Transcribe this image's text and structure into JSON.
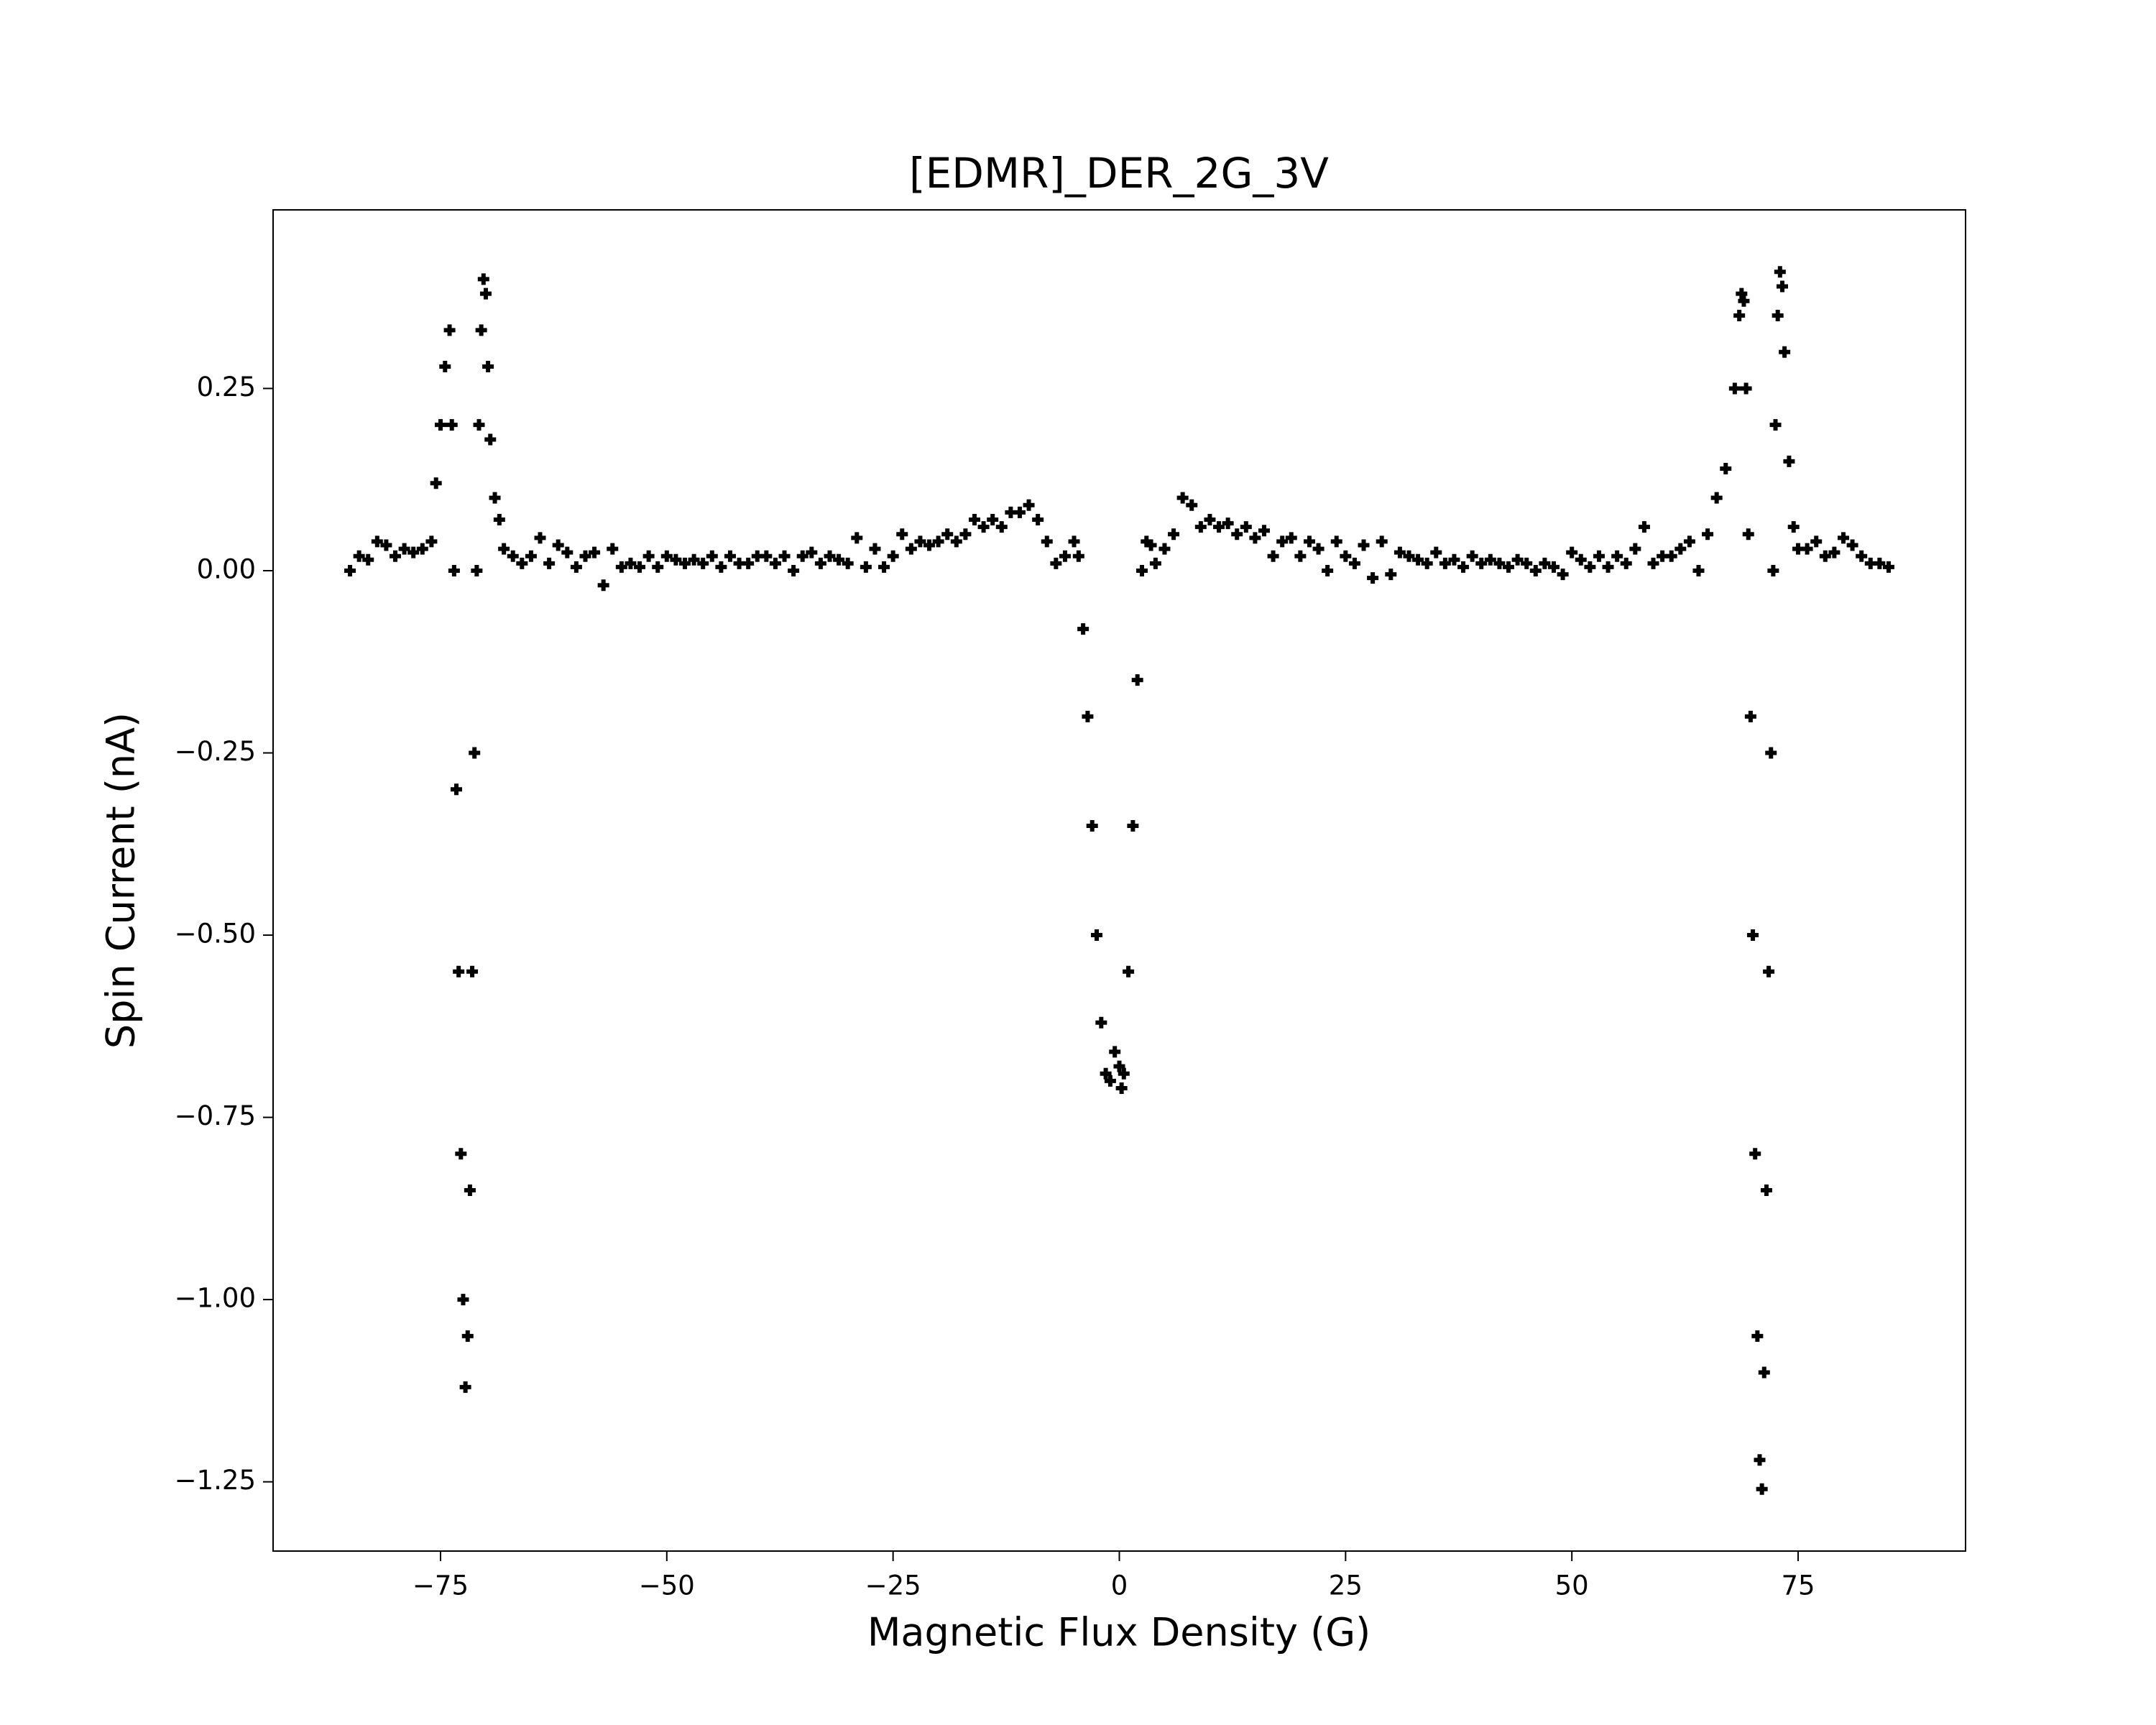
{
  "chart_data": {
    "type": "scatter",
    "title": "[EDMR]_DER_2G_3V",
    "x_label": "Magnetic Flux Density (G)",
    "y_label": "Spin Current (nA)",
    "color": "#000000",
    "xlim": [
      -93.5,
      93.5
    ],
    "ylim": [
      -1.345,
      0.495
    ],
    "xticks": [
      {
        "value": -75,
        "label": "−75"
      },
      {
        "value": -50,
        "label": "−50"
      },
      {
        "value": -25,
        "label": "−25"
      },
      0,
      25,
      50,
      75
    ],
    "yticks": [
      {
        "value": -1.25,
        "label": "−1.25"
      },
      {
        "value": -1.0,
        "label": "−1.00"
      },
      {
        "value": -0.75,
        "label": "−0.75"
      },
      {
        "value": -0.5,
        "label": "−0.50"
      },
      {
        "value": -0.25,
        "label": "−0.25"
      },
      {
        "value": 0,
        "label": "0.00"
      },
      0.25
    ],
    "x": [
      -85,
      -84,
      -83,
      -82,
      -81,
      -80,
      -79,
      -78,
      -77,
      -76,
      -75.5,
      -75,
      -74.5,
      -74,
      -73.75,
      -73.5,
      -73.25,
      -73,
      -72.75,
      -72.5,
      -72.25,
      -72,
      -71.75,
      -71.5,
      -71.25,
      -71,
      -70.75,
      -70.5,
      -70.25,
      -70,
      -69.75,
      -69.5,
      -69,
      -68.5,
      -68,
      -67,
      -66,
      -65,
      -64,
      -63,
      -62,
      -61,
      -60,
      -59,
      -58,
      -57,
      -56,
      -55,
      -54,
      -53,
      -52,
      -51,
      -50,
      -49,
      -48,
      -47,
      -46,
      -45,
      -44,
      -43,
      -42,
      -41,
      -40,
      -39,
      -38,
      -37,
      -36,
      -35,
      -34,
      -33,
      -32,
      -31,
      -30,
      -29,
      -28,
      -27,
      -26,
      -25,
      -24,
      -23,
      -22,
      -21,
      -20,
      -19,
      -18,
      -17,
      -16,
      -15,
      -14,
      -13,
      -12,
      -11,
      -10,
      -9,
      -8,
      -7,
      -6,
      -5,
      -4.5,
      -4,
      -3.5,
      -3,
      -2.5,
      -2,
      -1.5,
      -1,
      -0.5,
      0,
      0.25,
      0.5,
      1,
      1.5,
      2,
      2.5,
      3,
      3.5,
      4,
      5,
      6,
      7,
      8,
      9,
      10,
      11,
      12,
      13,
      14,
      15,
      16,
      17,
      18,
      19,
      20,
      21,
      22,
      23,
      24,
      25,
      26,
      27,
      28,
      29,
      30,
      31,
      32,
      33,
      34,
      35,
      36,
      37,
      38,
      39,
      40,
      41,
      42,
      43,
      44,
      45,
      46,
      47,
      48,
      49,
      50,
      51,
      52,
      53,
      54,
      55,
      56,
      57,
      58,
      59,
      60,
      61,
      62,
      63,
      64,
      65,
      66,
      67,
      68,
      68.5,
      68.75,
      69,
      69.25,
      69.5,
      69.75,
      70,
      70.25,
      70.5,
      70.75,
      71,
      71.25,
      71.5,
      71.75,
      72,
      72.25,
      72.5,
      72.75,
      73,
      73.25,
      73.5,
      74,
      74.5,
      75,
      76,
      77,
      78,
      79,
      80,
      81,
      82,
      83,
      84,
      85
    ],
    "y": [
      0.0,
      0.02,
      0.015,
      0.04,
      0.035,
      0.02,
      0.03,
      0.025,
      0.03,
      0.04,
      0.12,
      0.2,
      0.28,
      0.33,
      0.2,
      0.0,
      -0.3,
      -0.55,
      -0.8,
      -1.0,
      -1.12,
      -1.05,
      -0.85,
      -0.55,
      -0.25,
      0.0,
      0.2,
      0.33,
      0.4,
      0.38,
      0.28,
      0.18,
      0.1,
      0.07,
      0.03,
      0.02,
      0.01,
      0.02,
      0.045,
      0.01,
      0.035,
      0.025,
      0.005,
      0.02,
      0.025,
      -0.02,
      0.03,
      0.005,
      0.01,
      0.005,
      0.02,
      0.005,
      0.02,
      0.015,
      0.01,
      0.015,
      0.01,
      0.02,
      0.005,
      0.02,
      0.01,
      0.01,
      0.02,
      0.02,
      0.01,
      0.02,
      0.0,
      0.02,
      0.025,
      0.01,
      0.02,
      0.015,
      0.01,
      0.045,
      0.005,
      0.03,
      0.005,
      0.02,
      0.05,
      0.03,
      0.04,
      0.035,
      0.04,
      0.05,
      0.04,
      0.05,
      0.07,
      0.06,
      0.07,
      0.06,
      0.08,
      0.08,
      0.09,
      0.07,
      0.04,
      0.01,
      0.02,
      0.04,
      0.02,
      -0.08,
      -0.2,
      -0.35,
      -0.5,
      -0.62,
      -0.69,
      -0.7,
      -0.66,
      -0.68,
      -0.71,
      -0.69,
      -0.55,
      -0.35,
      -0.15,
      0.0,
      0.04,
      0.035,
      0.01,
      0.03,
      0.05,
      0.1,
      0.09,
      0.06,
      0.07,
      0.06,
      0.065,
      0.05,
      0.06,
      0.045,
      0.055,
      0.02,
      0.04,
      0.045,
      0.02,
      0.04,
      0.03,
      0.0,
      0.04,
      0.02,
      0.01,
      0.035,
      -0.01,
      0.04,
      -0.005,
      0.025,
      0.02,
      0.015,
      0.01,
      0.025,
      0.01,
      0.015,
      0.005,
      0.02,
      0.01,
      0.015,
      0.01,
      0.005,
      0.015,
      0.01,
      0.0,
      0.01,
      0.005,
      -0.005,
      0.025,
      0.015,
      0.005,
      0.02,
      0.005,
      0.02,
      0.01,
      0.03,
      0.06,
      0.01,
      0.02,
      0.02,
      0.03,
      0.04,
      0.0,
      0.05,
      0.1,
      0.14,
      0.25,
      0.35,
      0.38,
      0.37,
      0.25,
      0.05,
      -0.2,
      -0.5,
      -0.8,
      -1.05,
      -1.22,
      -1.26,
      -1.1,
      -0.85,
      -0.55,
      -0.25,
      0.0,
      0.2,
      0.35,
      0.41,
      0.39,
      0.3,
      0.15,
      0.06,
      0.03,
      0.03,
      0.04,
      0.02,
      0.025,
      0.045,
      0.035,
      0.02,
      0.01,
      0.01,
      0.005
    ]
  }
}
